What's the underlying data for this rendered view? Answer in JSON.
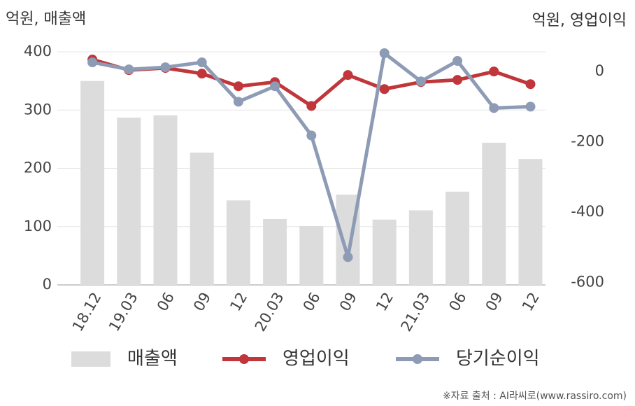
{
  "chart_data": {
    "type": "combo",
    "left_unit": "억원, 매출액",
    "right_unit": "억원, 영업이익",
    "source": "※자료 출처 : AI라씨로(www.rassiro.com)",
    "categories": [
      "18.12",
      "19.03",
      "06",
      "09",
      "12",
      "20.03",
      "06",
      "09",
      "12",
      "21.03",
      "06",
      "09",
      "12"
    ],
    "ylim": [
      0,
      400
    ],
    "yticks": [
      0,
      100,
      200,
      300,
      400
    ],
    "y2lim": [
      -607,
      56
    ],
    "y2ticks": [
      0,
      -200,
      -400,
      -600
    ],
    "grid": true,
    "series": [
      {
        "name": "매출액",
        "type": "bar",
        "color": "#dcdcdc",
        "values": [
          350,
          287,
          291,
          227,
          145,
          113,
          101,
          155,
          112,
          128,
          160,
          244,
          216
        ]
      },
      {
        "name": "영업이익",
        "type": "line",
        "axis": "y2",
        "color": "#c0363a",
        "values": [
          34,
          4,
          10,
          -6,
          -42,
          -30,
          -98,
          -10,
          -50,
          -30,
          -24,
          0,
          -36
        ]
      },
      {
        "name": "당기순이익",
        "type": "line",
        "axis": "y2",
        "color": "#8d9bb5",
        "values": [
          26,
          6,
          12,
          26,
          -86,
          -42,
          -182,
          -528,
          52,
          -28,
          30,
          -104,
          -100
        ]
      }
    ]
  }
}
